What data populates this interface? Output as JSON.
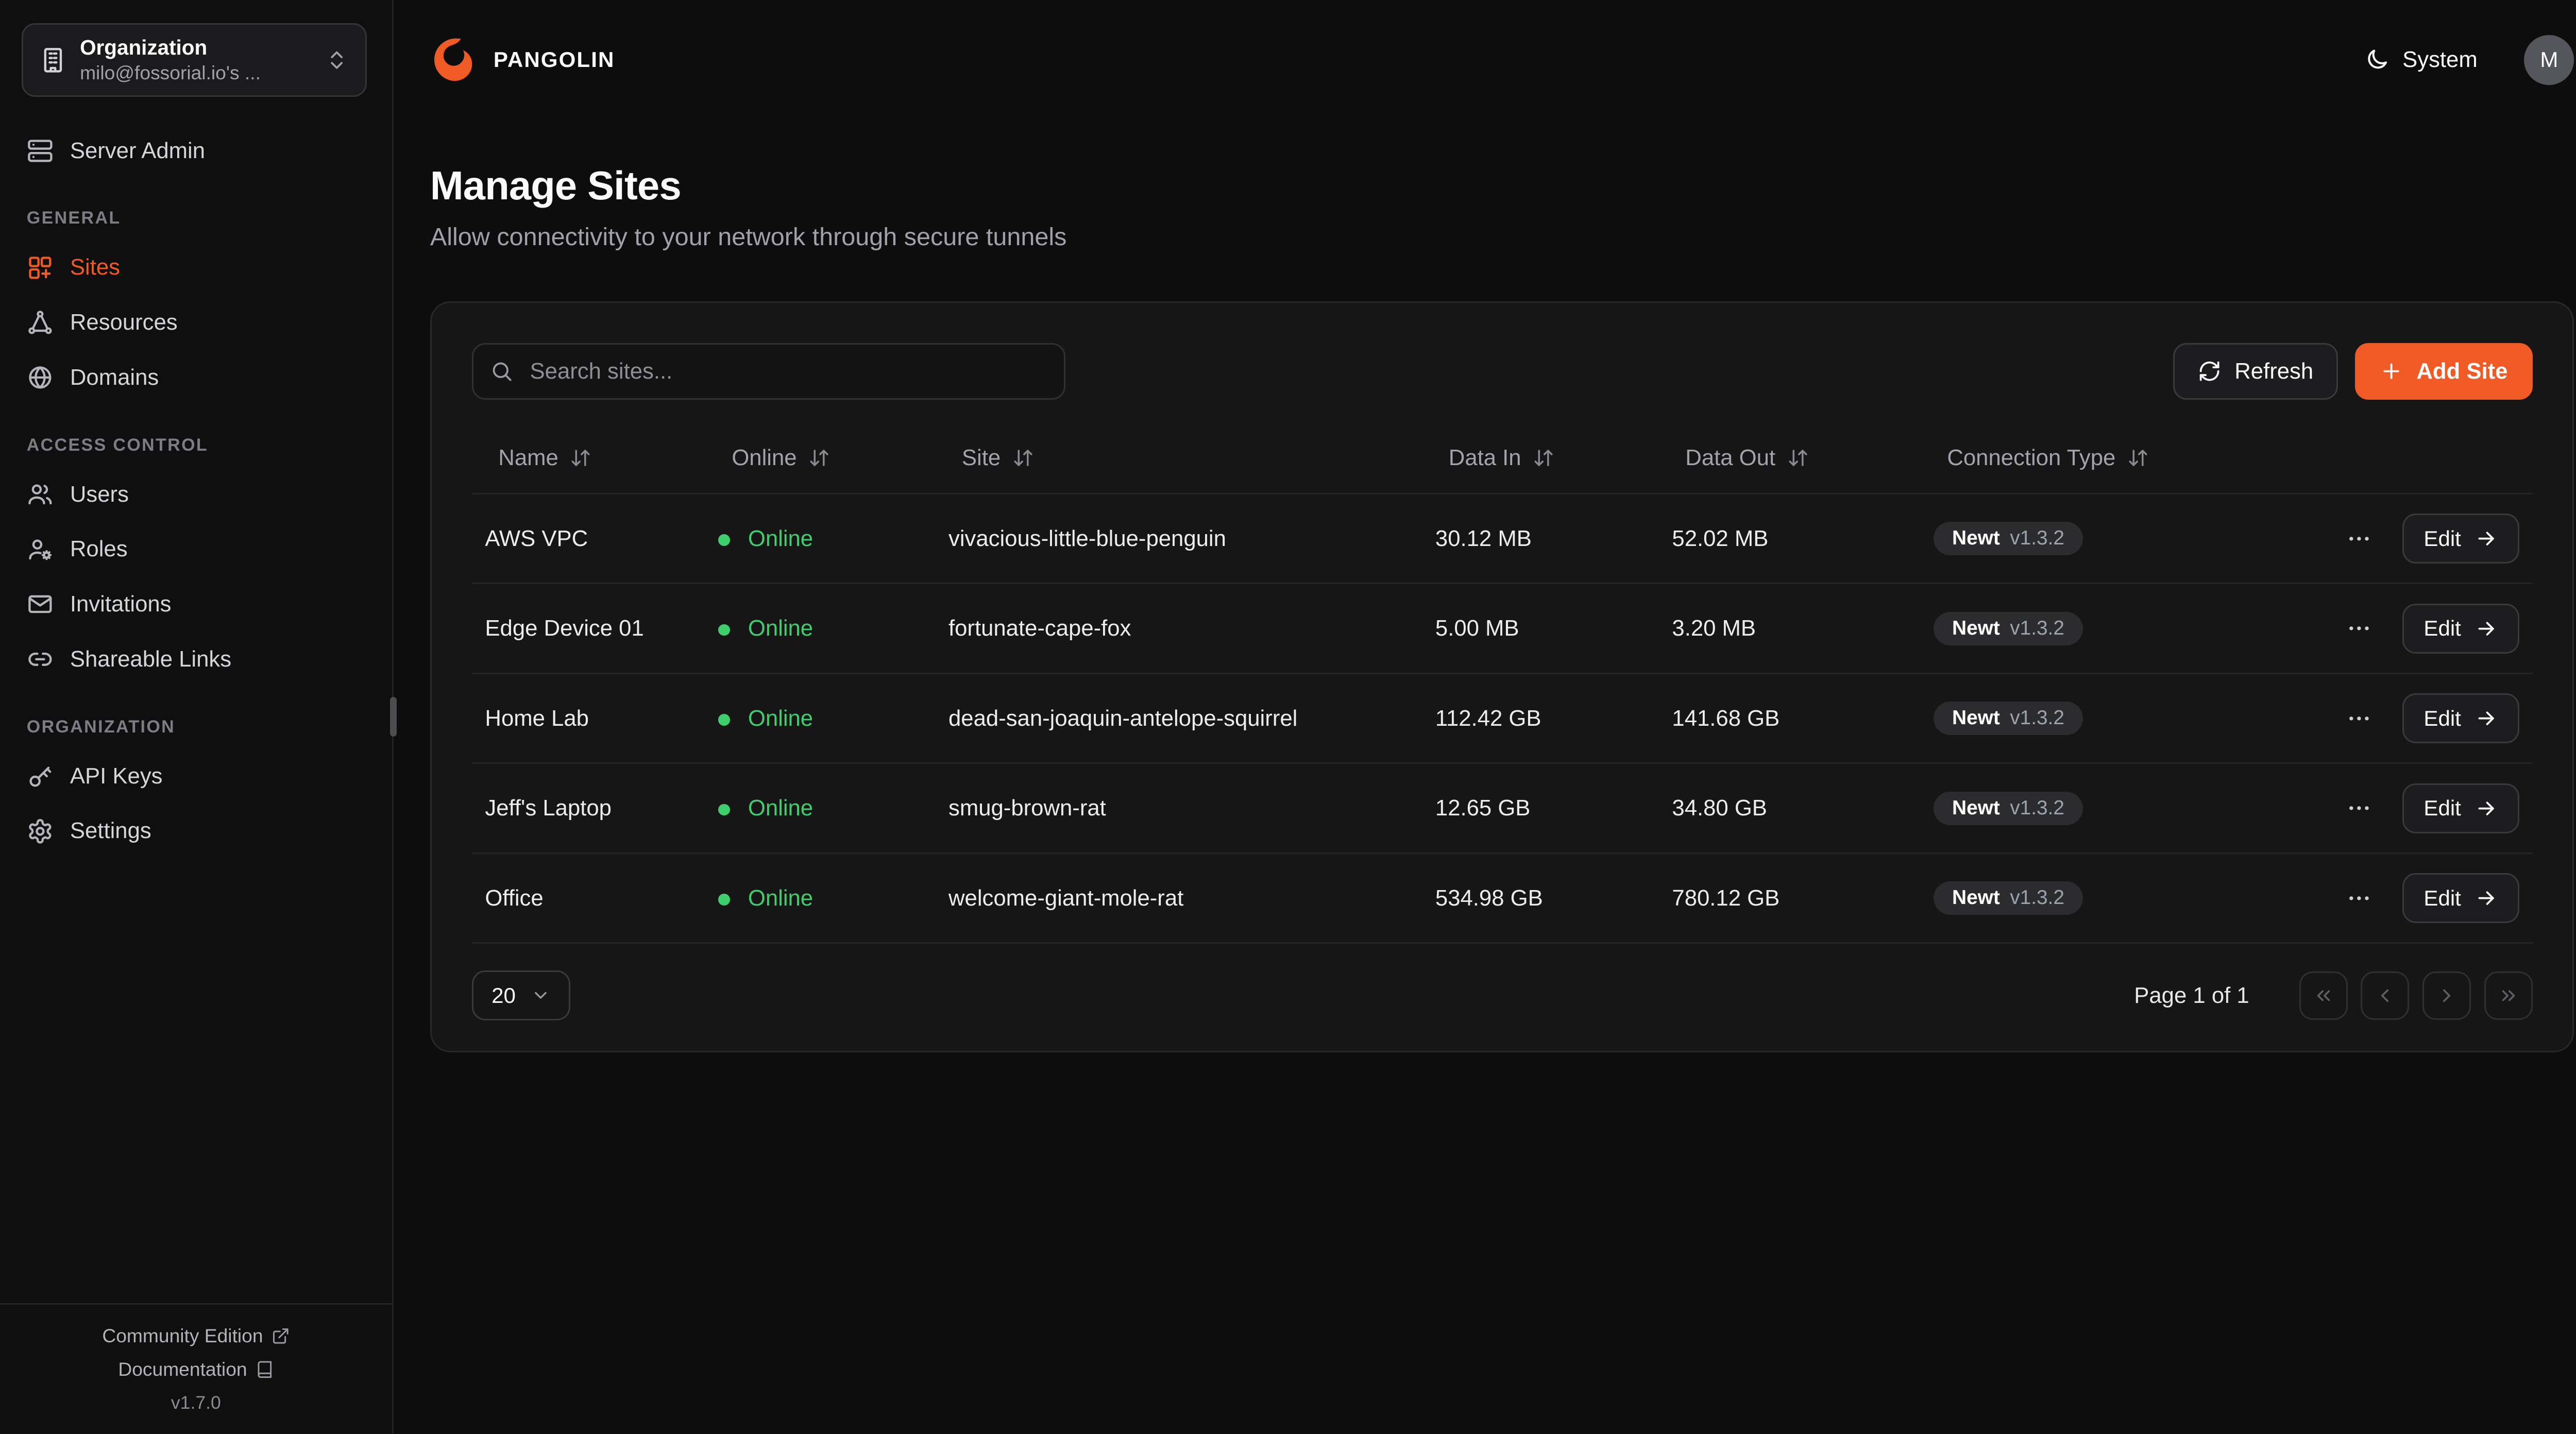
{
  "colors": {
    "accent": "#F05A24",
    "online": "#3FCE6E"
  },
  "header": {
    "brand": "PANGOLIN",
    "logo": "pangolin-logo",
    "theme_label": "System",
    "theme_icon": "moon-icon",
    "avatar_initial": "M"
  },
  "page": {
    "title": "Manage Sites",
    "subtitle": "Allow connectivity to your network through secure tunnels"
  },
  "sidebar": {
    "org_picker": {
      "icon": "building-icon",
      "title": "Organization",
      "subtitle": "milo@fossorial.io's ...",
      "chevron_icon": "chevrons-up-down-icon"
    },
    "server_admin": {
      "label": "Server Admin",
      "icon": "server-icon"
    },
    "sections": [
      {
        "label": "GENERAL",
        "items": [
          {
            "label": "Sites",
            "icon": "combine-icon",
            "active": true
          },
          {
            "label": "Resources",
            "icon": "waypoints-icon",
            "active": false
          },
          {
            "label": "Domains",
            "icon": "globe-icon",
            "active": false
          }
        ]
      },
      {
        "label": "ACCESS CONTROL",
        "items": [
          {
            "label": "Users",
            "icon": "users-icon",
            "active": false
          },
          {
            "label": "Roles",
            "icon": "user-cog-icon",
            "active": false
          },
          {
            "label": "Invitations",
            "icon": "mail-icon",
            "active": false
          },
          {
            "label": "Shareable Links",
            "icon": "link-icon",
            "active": false
          }
        ]
      },
      {
        "label": "ORGANIZATION",
        "items": [
          {
            "label": "API Keys",
            "icon": "key-icon",
            "active": false
          },
          {
            "label": "Settings",
            "icon": "gear-icon",
            "active": false
          }
        ]
      }
    ],
    "footer": {
      "community_label": "Community Edition",
      "community_icon": "external-link-icon",
      "docs_label": "Documentation",
      "docs_icon": "book-icon",
      "version": "v1.7.0"
    }
  },
  "table_card": {
    "search_placeholder": "Search sites...",
    "search_icon": "search-icon",
    "refresh_label": "Refresh",
    "refresh_icon": "refresh-icon",
    "add_site_label": "Add Site",
    "add_site_icon": "plus-icon",
    "columns": [
      "Name",
      "Online",
      "Site",
      "Data In",
      "Data Out",
      "Connection Type"
    ],
    "sort_icon": "sort-icon",
    "edit_label": "Edit",
    "rows": [
      {
        "name": "AWS VPC",
        "online": "Online",
        "site": "vivacious-little-blue-penguin",
        "data_in": "30.12 MB",
        "data_out": "52.02 MB",
        "connection": {
          "client": "Newt",
          "version": "v1.3.2"
        }
      },
      {
        "name": "Edge Device 01",
        "online": "Online",
        "site": "fortunate-cape-fox",
        "data_in": "5.00 MB",
        "data_out": "3.20 MB",
        "connection": {
          "client": "Newt",
          "version": "v1.3.2"
        }
      },
      {
        "name": "Home Lab",
        "online": "Online",
        "site": "dead-san-joaquin-antelope-squirrel",
        "data_in": "112.42 GB",
        "data_out": "141.68 GB",
        "connection": {
          "client": "Newt",
          "version": "v1.3.2"
        }
      },
      {
        "name": "Jeff's Laptop",
        "online": "Online",
        "site": "smug-brown-rat",
        "data_in": "12.65 GB",
        "data_out": "34.80 GB",
        "connection": {
          "client": "Newt",
          "version": "v1.3.2"
        }
      },
      {
        "name": "Office",
        "online": "Online",
        "site": "welcome-giant-mole-rat",
        "data_in": "534.98 GB",
        "data_out": "780.12 GB",
        "connection": {
          "client": "Newt",
          "version": "v1.3.2"
        }
      }
    ],
    "pagination": {
      "page_size": "20",
      "page_label": "Page 1 of 1"
    }
  }
}
